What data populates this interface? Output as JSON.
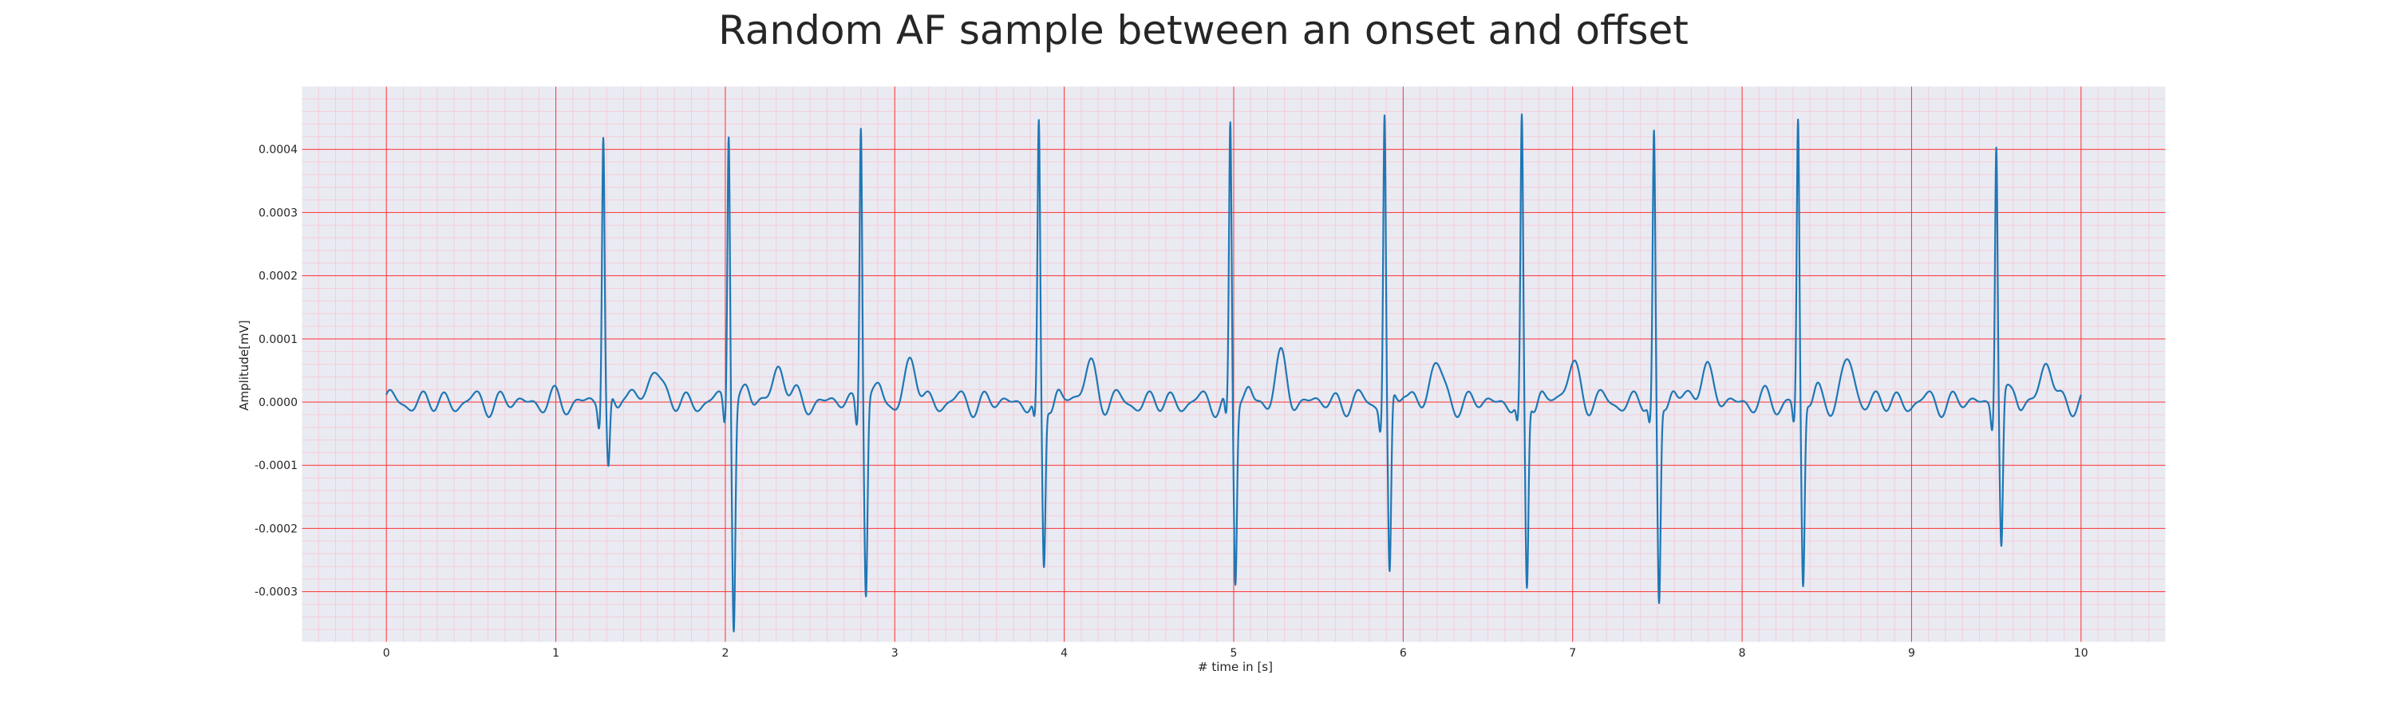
{
  "chart_data": {
    "type": "line",
    "title": "Random AF sample between an onset and offset",
    "xlabel": "# time in [s]",
    "ylabel": "Amplitude[mV]",
    "xlim": [
      -0.5,
      10.5
    ],
    "ylim": [
      -0.00038,
      0.0005
    ],
    "x_ticks": [
      "0",
      "1",
      "2",
      "3",
      "4",
      "5",
      "6",
      "7",
      "8",
      "9",
      "10"
    ],
    "y_ticks": [
      "0.0004",
      "0.0003",
      "0.0002",
      "0.0001",
      "0.0000",
      "-0.0001",
      "-0.0002",
      "-0.0003"
    ],
    "grid": true,
    "background": "ECG grid on lavender",
    "colors": {
      "line": "#1f77b4",
      "plot_bg": "#eaeaf2",
      "major_grid": "#ff0000",
      "minor_grid": "#ffb6c1"
    },
    "series": [
      {
        "beats_at_s": [
          1.28,
          2.02,
          2.8,
          3.85,
          4.98,
          5.89,
          6.7,
          7.48,
          8.33,
          9.5
        ],
        "r_peak_amplitude": [
          0.00042,
          0.00044,
          0.000455,
          0.000422,
          0.000436,
          0.00046,
          0.000432,
          0.000416,
          0.000443,
          0.00042
        ],
        "s_trough_amplitude": [
          -0.000115,
          -0.000345,
          -0.000295,
          -0.000268,
          -0.000282,
          -0.000282,
          -0.000308,
          -0.000322,
          -0.000295,
          -0.000232
        ],
        "x_range_s": [
          0,
          10
        ],
        "baseline": 0.0
      }
    ]
  }
}
